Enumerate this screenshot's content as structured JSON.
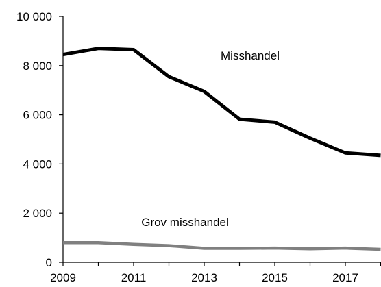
{
  "chart_data": {
    "type": "line",
    "title": "",
    "xlabel": "",
    "ylabel": "",
    "x": [
      2009,
      2010,
      2011,
      2012,
      2013,
      2014,
      2015,
      2016,
      2017,
      2018
    ],
    "xlim": [
      2009,
      2018
    ],
    "ylim": [
      0,
      10000
    ],
    "grid": false,
    "legend": "none",
    "x_tick_labels": [
      "2009",
      "2011",
      "2013",
      "2015",
      "2017"
    ],
    "y_tick_labels": [
      "0",
      "2 000",
      "4 000",
      "6 000",
      "8 000",
      "10 000"
    ],
    "series": [
      {
        "name": "Misshandel",
        "color": "#000000",
        "values": [
          8450,
          8700,
          8650,
          7550,
          6950,
          5820,
          5700,
          5050,
          4450,
          4350
        ]
      },
      {
        "name": "Grov misshandel",
        "color": "#808080",
        "values": [
          800,
          800,
          730,
          680,
          570,
          570,
          580,
          550,
          580,
          530
        ]
      }
    ]
  }
}
